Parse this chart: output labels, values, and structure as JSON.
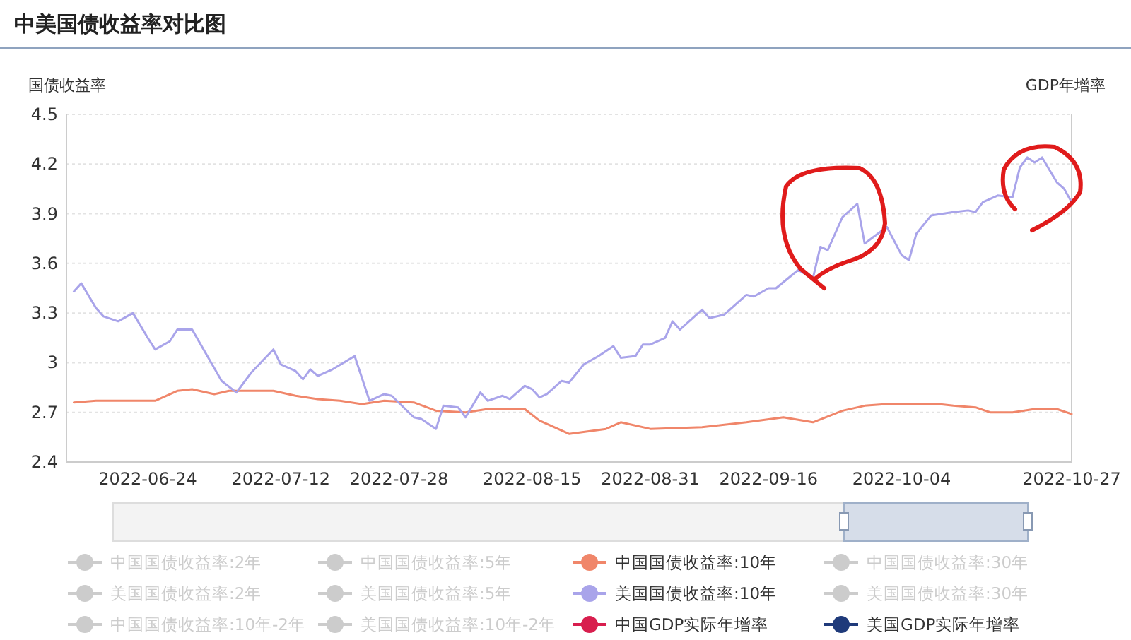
{
  "chart_data": {
    "type": "line",
    "title": "中美国债收益率对比图",
    "ylabel": "国债收益率",
    "y2label": "GDP年增率",
    "xlim": [
      "2022-06-13",
      "2022-10-27"
    ],
    "xticks": [
      "2022-06-24",
      "2022-07-12",
      "2022-07-28",
      "2022-08-15",
      "2022-08-31",
      "2022-09-16",
      "2022-10-04",
      "2022-10-27"
    ],
    "ylim": [
      2.4,
      4.5
    ],
    "yticks": [
      2.4,
      2.7,
      3,
      3.3,
      3.6,
      3.9,
      4.2,
      4.5
    ],
    "grid": "y",
    "legend": "bottom",
    "series": [
      {
        "name": "中国国债收益率:2年",
        "color": "#cccccc"
      },
      {
        "name": "中国国债收益率:5年",
        "color": "#cccccc"
      },
      {
        "name": "中国国债收益率:10年",
        "color": "#f0866a",
        "x": [
          "2022-06-14",
          "2022-06-17",
          "2022-06-19",
          "2022-06-23",
          "2022-06-25",
          "2022-06-28",
          "2022-06-30",
          "2022-07-03",
          "2022-07-05",
          "2022-07-11",
          "2022-07-14",
          "2022-07-17",
          "2022-07-20",
          "2022-07-23",
          "2022-07-26",
          "2022-07-30",
          "2022-08-02",
          "2022-08-06",
          "2022-08-09",
          "2022-08-14",
          "2022-08-16",
          "2022-08-20",
          "2022-08-25",
          "2022-08-27",
          "2022-08-31",
          "2022-09-07",
          "2022-09-13",
          "2022-09-18",
          "2022-09-22",
          "2022-09-26",
          "2022-09-29",
          "2022-10-02",
          "2022-10-09",
          "2022-10-11",
          "2022-10-14",
          "2022-10-16",
          "2022-10-19",
          "2022-10-22",
          "2022-10-25",
          "2022-10-27"
        ],
        "values": [
          2.76,
          2.77,
          2.77,
          2.77,
          2.77,
          2.83,
          2.84,
          2.81,
          2.83,
          2.83,
          2.8,
          2.78,
          2.77,
          2.75,
          2.77,
          2.76,
          2.71,
          2.7,
          2.72,
          2.72,
          2.65,
          2.57,
          2.6,
          2.64,
          2.6,
          2.61,
          2.64,
          2.67,
          2.64,
          2.71,
          2.74,
          2.75,
          2.75,
          2.74,
          2.73,
          2.7,
          2.7,
          2.72,
          2.72,
          2.69
        ]
      },
      {
        "name": "中国国债收益率:30年",
        "color": "#cccccc"
      },
      {
        "name": "美国国债收益率:2年",
        "color": "#cccccc"
      },
      {
        "name": "美国国债收益率:5年",
        "color": "#cccccc"
      },
      {
        "name": "美国国债收益率:10年",
        "color": "#a9a4ea",
        "x": [
          "2022-06-14",
          "2022-06-15",
          "2022-06-17",
          "2022-06-18",
          "2022-06-20",
          "2022-06-22",
          "2022-06-24",
          "2022-06-25",
          "2022-06-27",
          "2022-06-28",
          "2022-06-30",
          "2022-07-04",
          "2022-07-06",
          "2022-07-08",
          "2022-07-11",
          "2022-07-12",
          "2022-07-14",
          "2022-07-15",
          "2022-07-16",
          "2022-07-17",
          "2022-07-19",
          "2022-07-22",
          "2022-07-24",
          "2022-07-26",
          "2022-07-27",
          "2022-07-30",
          "2022-07-31",
          "2022-08-02",
          "2022-08-03",
          "2022-08-05",
          "2022-08-06",
          "2022-08-08",
          "2022-08-09",
          "2022-08-11",
          "2022-08-12",
          "2022-08-14",
          "2022-08-15",
          "2022-08-16",
          "2022-08-17",
          "2022-08-19",
          "2022-08-20",
          "2022-08-22",
          "2022-08-24",
          "2022-08-26",
          "2022-08-27",
          "2022-08-29",
          "2022-08-30",
          "2022-08-31",
          "2022-09-02",
          "2022-09-03",
          "2022-09-04",
          "2022-09-07",
          "2022-09-08",
          "2022-09-10",
          "2022-09-13",
          "2022-09-14",
          "2022-09-16",
          "2022-09-17",
          "2022-09-20",
          "2022-09-22",
          "2022-09-23",
          "2022-09-24",
          "2022-09-26",
          "2022-09-28",
          "2022-09-29",
          "2022-10-02",
          "2022-10-04",
          "2022-10-05",
          "2022-10-06",
          "2022-10-08",
          "2022-10-11",
          "2022-10-13",
          "2022-10-14",
          "2022-10-15",
          "2022-10-17",
          "2022-10-19",
          "2022-10-20",
          "2022-10-21",
          "2022-10-22",
          "2022-10-23",
          "2022-10-25",
          "2022-10-26",
          "2022-10-27"
        ],
        "values": [
          3.43,
          3.48,
          3.33,
          3.28,
          3.25,
          3.3,
          3.15,
          3.08,
          3.13,
          3.2,
          3.2,
          2.89,
          2.82,
          2.94,
          3.08,
          2.99,
          2.95,
          2.9,
          2.96,
          2.92,
          2.96,
          3.04,
          2.77,
          2.81,
          2.8,
          2.67,
          2.66,
          2.6,
          2.74,
          2.73,
          2.67,
          2.82,
          2.77,
          2.8,
          2.78,
          2.86,
          2.84,
          2.79,
          2.81,
          2.89,
          2.88,
          2.99,
          3.04,
          3.1,
          3.03,
          3.04,
          3.11,
          3.11,
          3.15,
          3.25,
          3.2,
          3.32,
          3.27,
          3.29,
          3.41,
          3.4,
          3.45,
          3.45,
          3.56,
          3.51,
          3.7,
          3.68,
          3.88,
          3.96,
          3.72,
          3.82,
          3.65,
          3.62,
          3.78,
          3.89,
          3.91,
          3.92,
          3.91,
          3.97,
          4.01,
          4.0,
          4.18,
          4.24,
          4.21,
          4.24,
          4.09,
          4.05,
          3.97
        ]
      },
      {
        "name": "美国国债收益率:30年",
        "color": "#cccccc"
      },
      {
        "name": "中国国债收益率:10年-2年",
        "color": "#cccccc"
      },
      {
        "name": "美国国债收益率:10年-2年",
        "color": "#cccccc"
      },
      {
        "name": "中国GDP实际年增率",
        "color": "#d81e4e"
      },
      {
        "name": "美国GDP实际年增率",
        "color": "#1f3a7a"
      }
    ]
  }
}
